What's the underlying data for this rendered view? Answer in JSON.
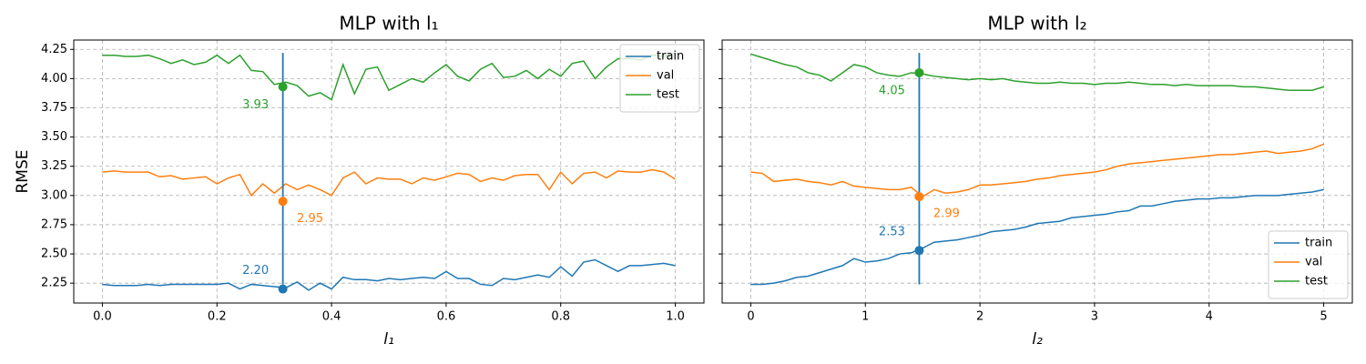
{
  "chart_data": [
    {
      "type": "line",
      "title": "MLP with l₁",
      "x_label": "l₁",
      "y_label": "RMSE",
      "x": [
        0,
        0.02,
        0.04,
        0.06,
        0.08,
        0.1,
        0.12,
        0.14,
        0.16,
        0.18,
        0.2,
        0.22,
        0.24,
        0.26,
        0.28,
        0.3,
        0.32,
        0.34,
        0.36,
        0.38,
        0.4,
        0.42,
        0.44,
        0.46,
        0.48,
        0.5,
        0.52,
        0.54,
        0.56,
        0.58,
        0.6,
        0.62,
        0.64,
        0.66,
        0.68,
        0.7,
        0.72,
        0.74,
        0.76,
        0.78,
        0.8,
        0.82,
        0.84,
        0.86,
        0.88,
        0.9,
        0.92,
        0.94,
        0.96,
        0.98,
        1
      ],
      "series": [
        {
          "name": "train",
          "color": "#1f77b4",
          "values": [
            2.24,
            2.23,
            2.23,
            2.23,
            2.24,
            2.23,
            2.24,
            2.24,
            2.24,
            2.24,
            2.24,
            2.25,
            2.2,
            2.24,
            2.23,
            2.22,
            2.21,
            2.26,
            2.19,
            2.25,
            2.2,
            2.3,
            2.28,
            2.28,
            2.27,
            2.29,
            2.28,
            2.29,
            2.3,
            2.29,
            2.35,
            2.29,
            2.29,
            2.24,
            2.23,
            2.29,
            2.28,
            2.3,
            2.32,
            2.3,
            2.39,
            2.31,
            2.43,
            2.45,
            2.4,
            2.35,
            2.4,
            2.4,
            2.41,
            2.42,
            2.4
          ]
        },
        {
          "name": "val",
          "color": "#ff7f0e",
          "values": [
            3.2,
            3.21,
            3.2,
            3.2,
            3.2,
            3.16,
            3.17,
            3.14,
            3.15,
            3.16,
            3.1,
            3.15,
            3.18,
            3.0,
            3.1,
            3.02,
            3.1,
            3.05,
            3.09,
            3.05,
            3.0,
            3.15,
            3.2,
            3.1,
            3.15,
            3.14,
            3.14,
            3.1,
            3.15,
            3.13,
            3.16,
            3.19,
            3.18,
            3.12,
            3.15,
            3.13,
            3.17,
            3.18,
            3.18,
            3.05,
            3.2,
            3.1,
            3.19,
            3.2,
            3.15,
            3.21,
            3.2,
            3.2,
            3.22,
            3.2,
            3.14
          ]
        },
        {
          "name": "test",
          "color": "#2ca02c",
          "values": [
            4.2,
            4.2,
            4.19,
            4.19,
            4.2,
            4.17,
            4.13,
            4.16,
            4.12,
            4.14,
            4.2,
            4.13,
            4.2,
            4.07,
            4.06,
            3.95,
            3.97,
            3.94,
            3.85,
            3.88,
            3.82,
            4.12,
            3.87,
            4.08,
            4.1,
            3.9,
            3.95,
            4.0,
            3.97,
            4.05,
            4.12,
            4.02,
            3.98,
            4.08,
            4.13,
            4.01,
            4.02,
            4.07,
            4.0,
            4.08,
            4.02,
            4.13,
            4.15,
            4.0,
            4.1,
            4.17,
            4.17,
            4.16,
            4.2,
            4.19,
            4.22
          ]
        }
      ],
      "best": {
        "x": 0.315,
        "vline_range": [
          2.24,
          4.22
        ],
        "values": [
          2.2,
          2.95,
          3.93
        ],
        "value_labels": [
          "2.20",
          "2.95",
          "3.93"
        ]
      },
      "xlim": [
        -0.05,
        1.05
      ],
      "xticks": [
        {
          "value": 0,
          "label": "0.0"
        },
        0.2,
        0.4,
        0.6,
        0.8,
        {
          "value": 1,
          "label": "1.0"
        }
      ],
      "ylim": [
        2.08,
        4.33
      ],
      "yticks": [
        2.25,
        {
          "value": 2.5,
          "label": "2.50"
        },
        2.75,
        {
          "value": 3,
          "label": "3.00"
        },
        3.25,
        {
          "value": 3.5,
          "label": "3.50"
        },
        3.75,
        {
          "value": 4,
          "label": "4.00"
        },
        4.25
      ],
      "show_ytick_labels": true,
      "grid": true,
      "legend": "upper right"
    },
    {
      "type": "line",
      "title": "MLP with l₂",
      "x_label": "l₂",
      "x": [
        0,
        0.1,
        0.2,
        0.3,
        0.4,
        0.5,
        0.6,
        0.7,
        0.8,
        0.9,
        1,
        1.1,
        1.2,
        1.3,
        1.4,
        1.5,
        1.6,
        1.7,
        1.8,
        1.9,
        2,
        2.1,
        2.2,
        2.3,
        2.4,
        2.5,
        2.6,
        2.7,
        2.8,
        2.9,
        3,
        3.1,
        3.2,
        3.3,
        3.4,
        3.5,
        3.6,
        3.7,
        3.8,
        3.9,
        4,
        4.1,
        4.2,
        4.3,
        4.4,
        4.5,
        4.6,
        4.7,
        4.8,
        4.9,
        5
      ],
      "series": [
        {
          "name": "train",
          "color": "#1f77b4",
          "values": [
            2.24,
            2.24,
            2.25,
            2.27,
            2.3,
            2.31,
            2.34,
            2.37,
            2.4,
            2.46,
            2.43,
            2.44,
            2.46,
            2.5,
            2.51,
            2.55,
            2.6,
            2.61,
            2.62,
            2.64,
            2.66,
            2.69,
            2.7,
            2.71,
            2.73,
            2.76,
            2.77,
            2.78,
            2.81,
            2.82,
            2.83,
            2.84,
            2.86,
            2.87,
            2.91,
            2.91,
            2.93,
            2.95,
            2.96,
            2.97,
            2.97,
            2.98,
            2.98,
            2.99,
            3.0,
            3.0,
            3.0,
            3.01,
            3.02,
            3.03,
            3.05
          ]
        },
        {
          "name": "val",
          "color": "#ff7f0e",
          "values": [
            3.2,
            3.19,
            3.12,
            3.13,
            3.14,
            3.12,
            3.11,
            3.09,
            3.12,
            3.08,
            3.07,
            3.06,
            3.05,
            3.05,
            3.07,
            2.99,
            3.05,
            3.02,
            3.03,
            3.05,
            3.09,
            3.09,
            3.1,
            3.11,
            3.12,
            3.14,
            3.15,
            3.17,
            3.18,
            3.19,
            3.2,
            3.22,
            3.25,
            3.27,
            3.28,
            3.29,
            3.3,
            3.31,
            3.32,
            3.33,
            3.34,
            3.35,
            3.35,
            3.36,
            3.37,
            3.38,
            3.36,
            3.37,
            3.38,
            3.4,
            3.44
          ]
        },
        {
          "name": "test",
          "color": "#2ca02c",
          "values": [
            4.21,
            4.18,
            4.15,
            4.12,
            4.1,
            4.05,
            4.03,
            3.98,
            4.05,
            4.12,
            4.1,
            4.05,
            4.03,
            4.02,
            4.05,
            4.04,
            4.02,
            4.01,
            4.0,
            3.99,
            4.0,
            3.99,
            4.0,
            3.98,
            3.97,
            3.96,
            3.96,
            3.97,
            3.96,
            3.96,
            3.95,
            3.96,
            3.96,
            3.97,
            3.96,
            3.95,
            3.95,
            3.94,
            3.95,
            3.94,
            3.94,
            3.94,
            3.94,
            3.93,
            3.93,
            3.92,
            3.91,
            3.9,
            3.9,
            3.9,
            3.93
          ]
        }
      ],
      "best": {
        "x": 1.47,
        "vline_range": [
          2.24,
          4.22
        ],
        "values": [
          2.53,
          2.99,
          4.05
        ],
        "value_labels": [
          "2.53",
          "2.99",
          "4.05"
        ]
      },
      "xlim": [
        -0.25,
        5.25
      ],
      "xticks": [
        0,
        1,
        2,
        3,
        4,
        5
      ],
      "ylim": [
        2.08,
        4.33
      ],
      "yticks": [
        2.25,
        {
          "value": 2.5,
          "label": "2.50"
        },
        2.75,
        {
          "value": 3,
          "label": "3.00"
        },
        3.25,
        {
          "value": 3.5,
          "label": "3.50"
        },
        3.75,
        {
          "value": 4,
          "label": "4.00"
        },
        4.25
      ],
      "show_ytick_labels": false,
      "grid": true,
      "legend": "lower right"
    }
  ]
}
